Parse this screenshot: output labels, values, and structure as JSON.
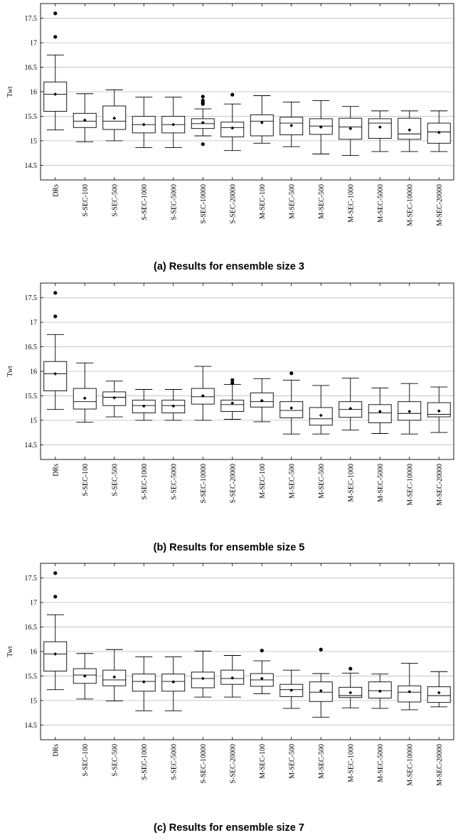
{
  "chart_data": [
    {
      "type": "box",
      "caption": "(a) Results for ensemble size 3",
      "ylabel": "Twt",
      "ylim": [
        14.2,
        17.8
      ],
      "yticks": [
        14.5,
        15,
        15.5,
        16,
        16.5,
        17,
        17.5
      ],
      "ytick_labels": [
        "14.5",
        "15",
        "15.5",
        "16",
        "16.5",
        "17",
        "17.5"
      ],
      "grid": "horizontal",
      "categories": [
        "DRs",
        "S-SEC-100",
        "S-SEC-500",
        "S-SEC-1000",
        "S-SEC-5000",
        "S-SEC-10000",
        "S-SEC-20000",
        "M-SEC-100",
        "M-SEC-500",
        "M-SEC-500",
        "M-SEC-1000",
        "M-SEC-5000",
        "M-SEC-10000",
        "M-SEC-20000"
      ],
      "boxes": [
        {
          "min": 15.22,
          "q1": 15.6,
          "median": 15.95,
          "q3": 16.2,
          "max": 16.75,
          "mean": 15.95,
          "outliers": [
            17.12,
            17.6
          ]
        },
        {
          "min": 14.98,
          "q1": 15.27,
          "median": 15.4,
          "q3": 15.56,
          "max": 15.96,
          "mean": 15.42,
          "outliers": []
        },
        {
          "min": 15.0,
          "q1": 15.23,
          "median": 15.4,
          "q3": 15.71,
          "max": 16.04,
          "mean": 15.46,
          "outliers": []
        },
        {
          "min": 14.86,
          "q1": 15.16,
          "median": 15.33,
          "q3": 15.5,
          "max": 15.89,
          "mean": 15.33,
          "outliers": []
        },
        {
          "min": 14.86,
          "q1": 15.16,
          "median": 15.33,
          "q3": 15.5,
          "max": 15.89,
          "mean": 15.33,
          "outliers": []
        },
        {
          "min": 15.1,
          "q1": 15.25,
          "median": 15.35,
          "q3": 15.45,
          "max": 15.65,
          "mean": 15.37,
          "outliers": [
            14.93,
            15.75,
            15.78,
            15.82,
            15.9
          ]
        },
        {
          "min": 14.8,
          "q1": 15.08,
          "median": 15.27,
          "q3": 15.38,
          "max": 15.75,
          "mean": 15.26,
          "outliers": [
            15.94
          ]
        },
        {
          "min": 14.95,
          "q1": 15.1,
          "median": 15.4,
          "q3": 15.53,
          "max": 15.92,
          "mean": 15.37,
          "outliers": []
        },
        {
          "min": 14.88,
          "q1": 15.12,
          "median": 15.36,
          "q3": 15.48,
          "max": 15.79,
          "mean": 15.31,
          "outliers": []
        },
        {
          "min": 14.73,
          "q1": 15.13,
          "median": 15.3,
          "q3": 15.45,
          "max": 15.82,
          "mean": 15.28,
          "outliers": []
        },
        {
          "min": 14.7,
          "q1": 15.03,
          "median": 15.28,
          "q3": 15.46,
          "max": 15.7,
          "mean": 15.25,
          "outliers": []
        },
        {
          "min": 14.78,
          "q1": 15.05,
          "median": 15.36,
          "q3": 15.45,
          "max": 15.61,
          "mean": 15.28,
          "outliers": []
        },
        {
          "min": 14.78,
          "q1": 15.03,
          "median": 15.14,
          "q3": 15.46,
          "max": 15.61,
          "mean": 15.22,
          "outliers": []
        },
        {
          "min": 14.78,
          "q1": 14.95,
          "median": 15.18,
          "q3": 15.36,
          "max": 15.61,
          "mean": 15.17,
          "outliers": []
        }
      ]
    },
    {
      "type": "box",
      "caption": "(b) Results for ensemble size 5",
      "ylabel": "Twt",
      "ylim": [
        14.2,
        17.8
      ],
      "yticks": [
        14.5,
        15,
        15.5,
        16,
        16.5,
        17,
        17.5
      ],
      "ytick_labels": [
        "14.5",
        "15",
        "15.5",
        "16",
        "16.5",
        "17",
        "17.5"
      ],
      "grid": "horizontal",
      "categories": [
        "DRs",
        "S-SEC-100",
        "S-SEC-500",
        "S-SEC-1000",
        "S-SEC-5000",
        "S-SEC-10000",
        "S-SEC-20000",
        "M-SEC-100",
        "M-SEC-500",
        "M-SEC-500",
        "M-SEC-1000",
        "M-SEC-5000",
        "M-SEC-10000",
        "M-SEC-20000"
      ],
      "boxes": [
        {
          "min": 15.22,
          "q1": 15.6,
          "median": 15.95,
          "q3": 16.2,
          "max": 16.75,
          "mean": 15.95,
          "outliers": [
            17.12,
            17.6
          ]
        },
        {
          "min": 14.96,
          "q1": 15.23,
          "median": 15.38,
          "q3": 15.65,
          "max": 16.17,
          "mean": 15.45,
          "outliers": []
        },
        {
          "min": 15.07,
          "q1": 15.3,
          "median": 15.47,
          "q3": 15.58,
          "max": 15.8,
          "mean": 15.46,
          "outliers": []
        },
        {
          "min": 15.0,
          "q1": 15.15,
          "median": 15.3,
          "q3": 15.41,
          "max": 15.63,
          "mean": 15.29,
          "outliers": []
        },
        {
          "min": 15.0,
          "q1": 15.15,
          "median": 15.3,
          "q3": 15.41,
          "max": 15.63,
          "mean": 15.29,
          "outliers": []
        },
        {
          "min": 15.0,
          "q1": 15.33,
          "median": 15.48,
          "q3": 15.65,
          "max": 16.1,
          "mean": 15.5,
          "outliers": []
        },
        {
          "min": 15.02,
          "q1": 15.18,
          "median": 15.32,
          "q3": 15.41,
          "max": 15.73,
          "mean": 15.35,
          "outliers": [
            15.76,
            15.82
          ]
        },
        {
          "min": 14.97,
          "q1": 15.27,
          "median": 15.38,
          "q3": 15.56,
          "max": 15.85,
          "mean": 15.4,
          "outliers": []
        },
        {
          "min": 14.72,
          "q1": 15.05,
          "median": 15.2,
          "q3": 15.38,
          "max": 15.82,
          "mean": 15.25,
          "outliers": [
            15.96
          ]
        },
        {
          "min": 14.72,
          "q1": 14.9,
          "median": 15.03,
          "q3": 15.26,
          "max": 15.71,
          "mean": 15.1,
          "outliers": []
        },
        {
          "min": 14.8,
          "q1": 15.06,
          "median": 15.22,
          "q3": 15.38,
          "max": 15.86,
          "mean": 15.24,
          "outliers": []
        },
        {
          "min": 14.73,
          "q1": 14.95,
          "median": 15.15,
          "q3": 15.32,
          "max": 15.66,
          "mean": 15.18,
          "outliers": []
        },
        {
          "min": 14.72,
          "q1": 15.0,
          "median": 15.14,
          "q3": 15.38,
          "max": 15.75,
          "mean": 15.18,
          "outliers": []
        },
        {
          "min": 14.75,
          "q1": 15.07,
          "median": 15.12,
          "q3": 15.36,
          "max": 15.68,
          "mean": 15.19,
          "outliers": []
        }
      ]
    },
    {
      "type": "box",
      "caption": "(c) Results for ensemble size 7",
      "ylabel": "Twt",
      "ylim": [
        14.2,
        17.8
      ],
      "yticks": [
        14.5,
        15,
        15.5,
        16,
        16.5,
        17,
        17.5
      ],
      "ytick_labels": [
        "14.5",
        "15",
        "15.5",
        "16",
        "16.5",
        "17",
        "17.5"
      ],
      "grid": "horizontal",
      "categories": [
        "DRs",
        "S-SEC-100",
        "S-SEC-500",
        "S-SEC-1000",
        "S-SEC-5000",
        "S-SEC-10000",
        "S-SEC-20000",
        "M-SEC-100",
        "M-SEC-500",
        "M-SEC-500",
        "M-SEC-1000",
        "M-SEC-5000",
        "M-SEC-10000",
        "M-SEC-20000"
      ],
      "boxes": [
        {
          "min": 15.22,
          "q1": 15.6,
          "median": 15.95,
          "q3": 16.2,
          "max": 16.75,
          "mean": 15.95,
          "outliers": [
            17.12,
            17.6
          ]
        },
        {
          "min": 15.03,
          "q1": 15.35,
          "median": 15.52,
          "q3": 15.65,
          "max": 15.96,
          "mean": 15.5,
          "outliers": []
        },
        {
          "min": 14.99,
          "q1": 15.3,
          "median": 15.42,
          "q3": 15.62,
          "max": 16.04,
          "mean": 15.48,
          "outliers": []
        },
        {
          "min": 14.79,
          "q1": 15.19,
          "median": 15.39,
          "q3": 15.54,
          "max": 15.89,
          "mean": 15.38,
          "outliers": []
        },
        {
          "min": 14.79,
          "q1": 15.19,
          "median": 15.39,
          "q3": 15.54,
          "max": 15.89,
          "mean": 15.38,
          "outliers": []
        },
        {
          "min": 15.07,
          "q1": 15.26,
          "median": 15.45,
          "q3": 15.58,
          "max": 16.01,
          "mean": 15.45,
          "outliers": []
        },
        {
          "min": 15.07,
          "q1": 15.33,
          "median": 15.45,
          "q3": 15.62,
          "max": 15.92,
          "mean": 15.46,
          "outliers": []
        },
        {
          "min": 15.14,
          "q1": 15.29,
          "median": 15.42,
          "q3": 15.55,
          "max": 15.81,
          "mean": 15.45,
          "outliers": [
            16.02
          ]
        },
        {
          "min": 14.84,
          "q1": 15.08,
          "median": 15.22,
          "q3": 15.33,
          "max": 15.62,
          "mean": 15.21,
          "outliers": []
        },
        {
          "min": 14.66,
          "q1": 14.98,
          "median": 15.17,
          "q3": 15.38,
          "max": 15.55,
          "mean": 15.2,
          "outliers": [
            16.04
          ]
        },
        {
          "min": 14.85,
          "q1": 15.06,
          "median": 15.1,
          "q3": 15.27,
          "max": 15.56,
          "mean": 15.16,
          "outliers": [
            15.65
          ]
        },
        {
          "min": 14.84,
          "q1": 15.05,
          "median": 15.2,
          "q3": 15.38,
          "max": 15.54,
          "mean": 15.19,
          "outliers": []
        },
        {
          "min": 14.81,
          "q1": 14.97,
          "median": 15.17,
          "q3": 15.3,
          "max": 15.76,
          "mean": 15.18,
          "outliers": []
        },
        {
          "min": 14.87,
          "q1": 14.96,
          "median": 15.1,
          "q3": 15.28,
          "max": 15.59,
          "mean": 15.16,
          "outliers": []
        }
      ]
    }
  ]
}
